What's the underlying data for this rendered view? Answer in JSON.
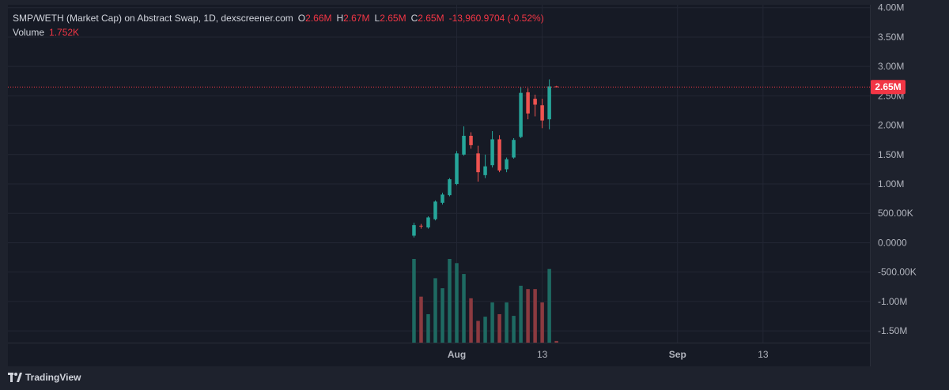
{
  "header": {
    "symbol_title": "SMP/WETH (Market Cap) on Abstract Swap, 1D, dexscreener.com",
    "open_key": "O",
    "open_val": "2.66M",
    "high_key": "H",
    "high_val": "2.67M",
    "low_key": "L",
    "low_val": "2.65M",
    "close_key": "C",
    "close_val": "2.65M",
    "change": "-13,960.9704 (-0.52%)",
    "volume_label": "Volume",
    "volume_val": "1.752K"
  },
  "branding": {
    "name": "TradingView"
  },
  "colors": {
    "up": "#26a69a",
    "down": "#ef5350",
    "up_volume": "#1e6a62",
    "down_volume": "#8c3a40",
    "price_line": "#f23645"
  },
  "chart_data": {
    "type": "candlestick",
    "y_axis": {
      "ticks": [
        "4.00M",
        "3.50M",
        "3.00M",
        "2.50M",
        "2.00M",
        "1.50M",
        "1.00M",
        "500.00K",
        "0.0000",
        "-500.00K",
        "-1.00M",
        "-1.50M"
      ],
      "values": [
        4000000,
        3500000,
        3000000,
        2500000,
        2000000,
        1500000,
        1000000,
        500000,
        0,
        -500000,
        -1000000,
        -1500000
      ],
      "ylim": [
        -1700000,
        4050000
      ]
    },
    "x_axis": {
      "labels": [
        {
          "text": "Aug",
          "day": 0
        },
        {
          "text": "13",
          "day": 12
        },
        {
          "text": "Sep",
          "day": 31
        },
        {
          "text": "13",
          "day": 43
        }
      ],
      "xlim": [
        -63,
        58
      ]
    },
    "last_price": {
      "value": 2650000,
      "label": "2.65M"
    },
    "candles": [
      {
        "day": -6,
        "o": 120000,
        "h": 340000,
        "l": 90000,
        "c": 300000
      },
      {
        "day": -5,
        "o": 290000,
        "h": 320000,
        "l": 240000,
        "c": 280000
      },
      {
        "day": -4,
        "o": 260000,
        "h": 450000,
        "l": 240000,
        "c": 430000
      },
      {
        "day": -3,
        "o": 400000,
        "h": 720000,
        "l": 380000,
        "c": 700000
      },
      {
        "day": -2,
        "o": 680000,
        "h": 850000,
        "l": 650000,
        "c": 820000
      },
      {
        "day": -1,
        "o": 810000,
        "h": 1100000,
        "l": 790000,
        "c": 1080000
      },
      {
        "day": 0,
        "o": 1000000,
        "h": 1560000,
        "l": 980000,
        "c": 1520000
      },
      {
        "day": 1,
        "o": 1500000,
        "h": 1980000,
        "l": 1480000,
        "c": 1820000
      },
      {
        "day": 2,
        "o": 1820000,
        "h": 1880000,
        "l": 1600000,
        "c": 1660000
      },
      {
        "day": 3,
        "o": 1520000,
        "h": 1650000,
        "l": 1040000,
        "c": 1200000
      },
      {
        "day": 4,
        "o": 1150000,
        "h": 1500000,
        "l": 1100000,
        "c": 1300000
      },
      {
        "day": 5,
        "o": 1320000,
        "h": 1900000,
        "l": 1280000,
        "c": 1760000
      },
      {
        "day": 6,
        "o": 1760000,
        "h": 1830000,
        "l": 1200000,
        "c": 1230000
      },
      {
        "day": 7,
        "o": 1250000,
        "h": 1450000,
        "l": 1200000,
        "c": 1420000
      },
      {
        "day": 8,
        "o": 1450000,
        "h": 1780000,
        "l": 1430000,
        "c": 1750000
      },
      {
        "day": 9,
        "o": 1800000,
        "h": 2650000,
        "l": 1780000,
        "c": 2550000
      },
      {
        "day": 10,
        "o": 2560000,
        "h": 2630000,
        "l": 2100000,
        "c": 2200000
      },
      {
        "day": 11,
        "o": 2450000,
        "h": 2520000,
        "l": 2150000,
        "c": 2350000
      },
      {
        "day": 12,
        "o": 2340000,
        "h": 2450000,
        "l": 1950000,
        "c": 2080000
      },
      {
        "day": 13,
        "o": 2100000,
        "h": 2780000,
        "l": 1930000,
        "c": 2660000
      },
      {
        "day": 14,
        "o": 2660000,
        "h": 2670000,
        "l": 2650000,
        "c": 2650000
      }
    ],
    "volume": [
      {
        "day": -6,
        "v": 1.0
      },
      {
        "day": -5,
        "v": 0.55
      },
      {
        "day": -4,
        "v": 0.34
      },
      {
        "day": -3,
        "v": 0.77
      },
      {
        "day": -2,
        "v": 0.65
      },
      {
        "day": -1,
        "v": 1.0
      },
      {
        "day": 0,
        "v": 0.95
      },
      {
        "day": 1,
        "v": 0.82
      },
      {
        "day": 2,
        "v": 0.53
      },
      {
        "day": 3,
        "v": 0.26
      },
      {
        "day": 4,
        "v": 0.31
      },
      {
        "day": 5,
        "v": 0.48
      },
      {
        "day": 6,
        "v": 0.34
      },
      {
        "day": 7,
        "v": 0.48
      },
      {
        "day": 8,
        "v": 0.32
      },
      {
        "day": 9,
        "v": 0.68
      },
      {
        "day": 10,
        "v": 0.64
      },
      {
        "day": 11,
        "v": 0.64
      },
      {
        "day": 12,
        "v": 0.48
      },
      {
        "day": 13,
        "v": 0.88
      },
      {
        "day": 14,
        "v": 0.02
      }
    ],
    "volume_max": 1.0
  }
}
